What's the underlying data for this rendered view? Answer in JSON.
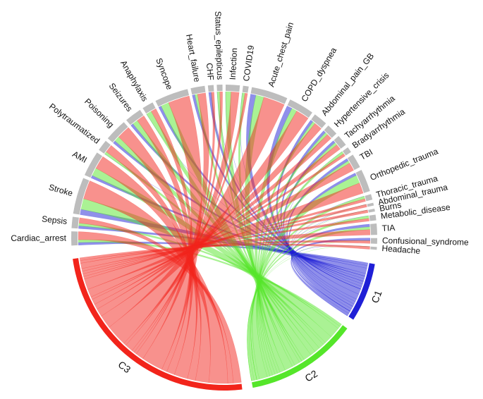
{
  "chart_data": {
    "type": "chord",
    "sources": [
      "Cardiac_arrest",
      "Sepsis",
      "Stroke",
      "AMI",
      "Polytraumatized",
      "Poisoning",
      "Seizures",
      "Anaphylaxis",
      "Syncope",
      "Heart_failure",
      "CHF",
      "Status_epilepticus",
      "Infection",
      "COVID19",
      "Acute_chest_pain",
      "COPD_dyspnea",
      "Abdominal_pain_GB",
      "Hypertensive_crisis",
      "Tachyarrhythmia",
      "Bradyarrhythmia",
      "TBI",
      "Orthopedic_trauma",
      "Thoracic_trauma",
      "Abdominal_trauma",
      "Burns",
      "Metabolic_disease",
      "TIA",
      "Confusional_syndrome",
      "Headache"
    ],
    "source_color": "#bdbdbd",
    "targets": [
      {
        "name": "C1",
        "color": "#1f1fd6"
      },
      {
        "name": "C2",
        "color": "#55e62a"
      },
      {
        "name": "C3",
        "color": "#f2241b"
      }
    ],
    "matrix": [
      [
        1,
        1,
        3
      ],
      [
        1,
        1,
        2
      ],
      [
        2,
        4,
        7
      ],
      [
        1,
        3,
        5
      ],
      [
        0,
        1,
        3
      ],
      [
        1,
        2,
        5
      ],
      [
        1,
        2,
        3
      ],
      [
        0,
        2,
        2
      ],
      [
        1,
        3,
        8
      ],
      [
        1,
        1,
        3
      ],
      [
        1,
        0,
        1
      ],
      [
        0,
        1,
        1
      ],
      [
        0,
        2,
        3
      ],
      [
        0,
        1,
        1
      ],
      [
        2,
        3,
        8
      ],
      [
        2,
        2,
        5
      ],
      [
        1,
        1,
        3
      ],
      [
        1,
        1,
        2
      ],
      [
        1,
        1,
        2
      ],
      [
        0,
        1,
        1
      ],
      [
        1,
        1,
        3
      ],
      [
        1,
        3,
        4
      ],
      [
        0,
        1,
        1
      ],
      [
        0,
        0,
        1
      ],
      [
        0,
        0,
        1
      ],
      [
        0,
        1,
        1
      ],
      [
        1,
        1,
        2
      ],
      [
        1,
        0,
        1
      ],
      [
        0,
        0,
        1
      ]
    ]
  }
}
